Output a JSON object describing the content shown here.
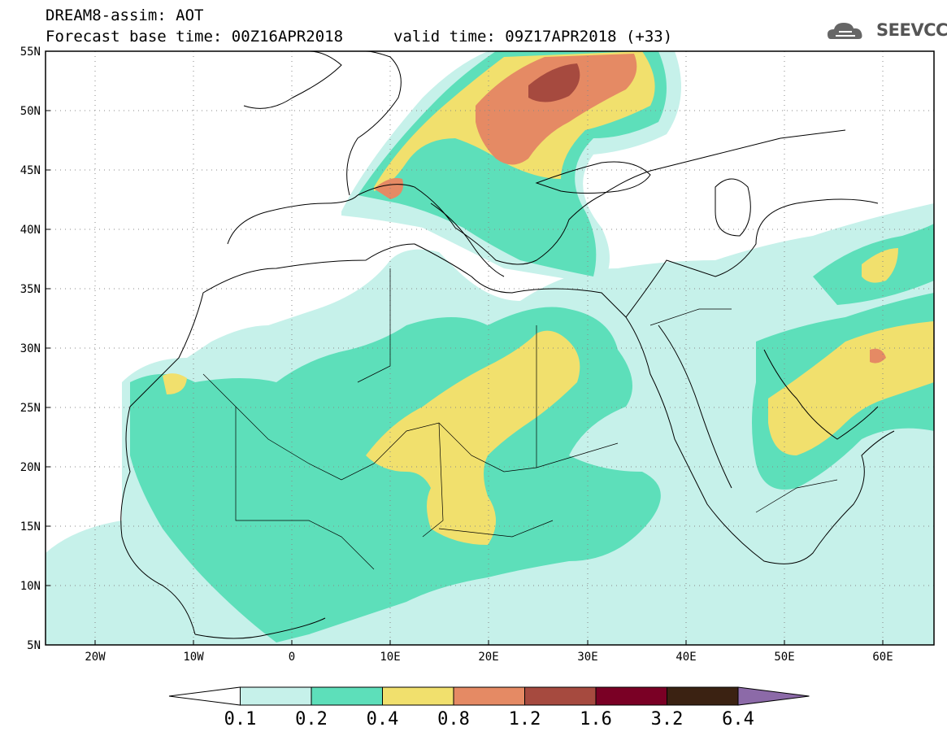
{
  "header": {
    "title_line1": "DREAM8-assim: AOT",
    "title_line2": "Forecast base time: 00Z16APR2018",
    "valid_time": "valid time: 09Z17APR2018 (+33)",
    "logo_text": "SEEVCCC",
    "logo_icon": "cloud-icon"
  },
  "map": {
    "projection": "lat-lon",
    "lon_range": [
      -25,
      65
    ],
    "lat_range": [
      5,
      55
    ],
    "lat_labels": [
      "55N",
      "50N",
      "45N",
      "40N",
      "35N",
      "30N",
      "25N",
      "20N",
      "15N",
      "10N",
      "5N"
    ],
    "lon_labels": [
      "20W",
      "10W",
      "0",
      "10E",
      "20E",
      "30E",
      "40E",
      "50E",
      "60E"
    ],
    "gridlines": "dotted"
  },
  "colorbar": {
    "levels": [
      "0.1",
      "0.2",
      "0.4",
      "0.8",
      "1.2",
      "1.6",
      "3.2",
      "6.4"
    ],
    "colors": [
      "#ffffff",
      "#c6f1ea",
      "#5ddfba",
      "#f1e06d",
      "#e58a64",
      "#a64a3f",
      "#7a0025",
      "#3b2212",
      "#8c6aa8"
    ]
  }
}
